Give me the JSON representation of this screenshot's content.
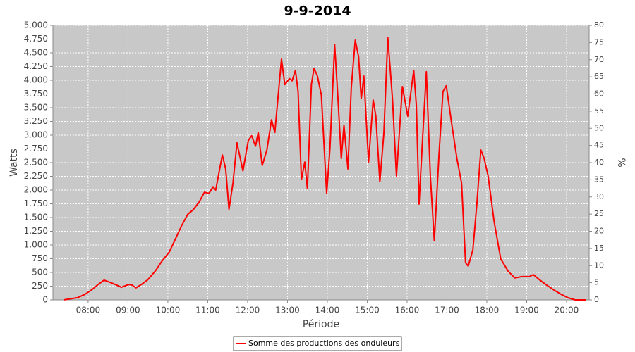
{
  "chart_data": {
    "type": "line",
    "title": "9-9-2014",
    "x_label": "Période",
    "y_label": "Watts",
    "y2_label": "%",
    "x": [
      "07:23",
      "07:44",
      "07:55",
      "08:05",
      "08:16",
      "08:24",
      "08:33",
      "08:41",
      "08:50",
      "09:01",
      "09:06",
      "09:12",
      "09:20",
      "09:30",
      "09:41",
      "09:51",
      "10:02",
      "10:11",
      "10:21",
      "10:30",
      "10:38",
      "10:47",
      "10:55",
      "11:02",
      "11:08",
      "11:12",
      "11:22",
      "11:27",
      "11:32",
      "11:38",
      "11:44",
      "11:53",
      "12:01",
      "12:06",
      "12:12",
      "12:16",
      "12:22",
      "12:29",
      "12:36",
      "12:41",
      "12:51",
      "12:56",
      "13:03",
      "13:07",
      "13:12",
      "13:16",
      "13:21",
      "13:26",
      "13:30",
      "13:36",
      "13:40",
      "13:45",
      "13:51",
      "13:59",
      "14:04",
      "14:11",
      "14:16",
      "14:21",
      "14:25",
      "14:31",
      "14:36",
      "14:42",
      "14:47",
      "14:51",
      "14:55",
      "15:02",
      "15:09",
      "15:13",
      "15:19",
      "15:25",
      "15:31",
      "15:38",
      "15:44",
      "15:53",
      "16:01",
      "16:10",
      "16:14",
      "16:18",
      "16:22",
      "16:29",
      "16:35",
      "16:41",
      "16:48",
      "16:54",
      "16:59",
      "17:07",
      "17:15",
      "17:22",
      "17:28",
      "17:32",
      "17:39",
      "17:45",
      "17:51",
      "17:56",
      "18:02",
      "18:11",
      "18:21",
      "18:32",
      "18:42",
      "18:53",
      "19:04",
      "19:10",
      "19:20",
      "19:30",
      "19:41",
      "19:52",
      "20:02",
      "20:13",
      "20:29"
    ],
    "series": [
      {
        "name": "Somme des productions des onduleurs",
        "color": "#ff0000",
        "values": [
          0,
          40,
          100,
          180,
          290,
          360,
          320,
          280,
          230,
          280,
          270,
          220,
          280,
          370,
          525,
          705,
          870,
          1100,
          1360,
          1560,
          1640,
          1780,
          1960,
          1940,
          2060,
          2000,
          2640,
          2385,
          1650,
          2130,
          2860,
          2350,
          2900,
          2990,
          2800,
          3050,
          2450,
          2730,
          3280,
          3050,
          4385,
          3920,
          4030,
          3990,
          4180,
          3795,
          2190,
          2510,
          2025,
          3920,
          4220,
          4080,
          3730,
          1935,
          2770,
          4650,
          3665,
          2575,
          3180,
          2385,
          3860,
          4730,
          4435,
          3665,
          4075,
          2510,
          3640,
          3345,
          2150,
          3025,
          4780,
          3665,
          2255,
          3885,
          3345,
          4180,
          3540,
          1745,
          2640,
          4155,
          2255,
          1075,
          2640,
          3795,
          3900,
          3220,
          2575,
          2130,
          680,
          615,
          910,
          1745,
          2730,
          2575,
          2255,
          1425,
          745,
          525,
          400,
          425,
          425,
          460,
          360,
          270,
          180,
          100,
          40,
          0,
          0
        ]
      }
    ],
    "xlim": [
      "07:07",
      "20:34"
    ],
    "xticks": [
      "08:00",
      "09:00",
      "10:00",
      "11:00",
      "12:00",
      "13:00",
      "14:00",
      "15:00",
      "16:00",
      "17:00",
      "18:00",
      "19:00",
      "20:00"
    ],
    "ylim": [
      0,
      5000
    ],
    "yticks": [
      0,
      250,
      500,
      750,
      {
        "value": 1000,
        "label": "1.000"
      },
      {
        "value": 1250,
        "label": "1.250"
      },
      {
        "value": 1500,
        "label": "1.500"
      },
      {
        "value": 1750,
        "label": "1.750"
      },
      {
        "value": 2000,
        "label": "2.000"
      },
      {
        "value": 2250,
        "label": "2.250"
      },
      {
        "value": 2500,
        "label": "2.500"
      },
      {
        "value": 2750,
        "label": "2.750"
      },
      {
        "value": 3000,
        "label": "3.000"
      },
      {
        "value": 3250,
        "label": "3.250"
      },
      {
        "value": 3500,
        "label": "3.500"
      },
      {
        "value": 3750,
        "label": "3.750"
      },
      {
        "value": 4000,
        "label": "4.000"
      },
      {
        "value": 4250,
        "label": "4.250"
      },
      {
        "value": 4500,
        "label": "4.500"
      },
      {
        "value": 4750,
        "label": "4.750"
      },
      {
        "value": 5000,
        "label": "5.000"
      }
    ],
    "y2lim": [
      0,
      80
    ],
    "y2ticks": [
      0,
      5,
      10,
      15,
      20,
      25,
      30,
      35,
      40,
      45,
      50,
      55,
      60,
      65,
      70,
      75,
      80
    ],
    "grid": true,
    "legend": "bottom"
  }
}
